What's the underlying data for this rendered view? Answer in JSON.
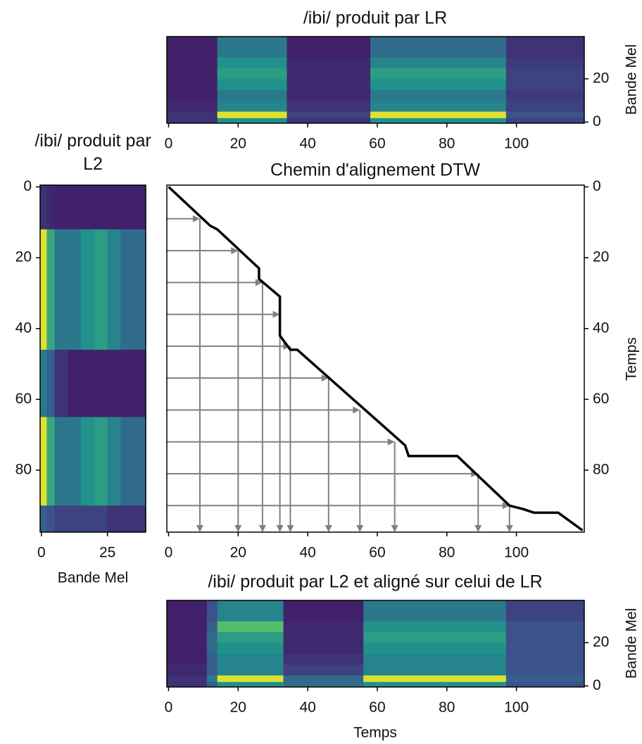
{
  "chart_data": [
    {
      "type": "heatmap",
      "title": "/ibi/ produit par LR",
      "ylabel": "Bande Mel",
      "xlim": [
        -0.5,
        119.5
      ],
      "ylim": [
        -0.5,
        39.5
      ],
      "xticks": [
        0,
        20,
        40,
        60,
        80,
        100
      ],
      "yticks": [
        0,
        20
      ],
      "yaxis_side": "right",
      "colormap": "viridis",
      "x_edges": [
        -0.5,
        14,
        34,
        58,
        97,
        119.5
      ],
      "y_edges": [
        -0.5,
        2,
        5,
        10,
        15,
        20,
        25,
        30,
        39.5
      ],
      "values": [
        [
          0.15,
          0.5,
          0.15,
          0.5,
          0.2
        ],
        [
          0.15,
          0.95,
          0.2,
          0.95,
          0.25
        ],
        [
          0.12,
          0.45,
          0.15,
          0.45,
          0.2
        ],
        [
          0.1,
          0.4,
          0.12,
          0.4,
          0.18
        ],
        [
          0.1,
          0.5,
          0.12,
          0.5,
          0.2
        ],
        [
          0.1,
          0.55,
          0.12,
          0.55,
          0.2
        ],
        [
          0.1,
          0.5,
          0.12,
          0.45,
          0.18
        ],
        [
          0.1,
          0.4,
          0.1,
          0.35,
          0.15
        ]
      ]
    },
    {
      "type": "heatmap",
      "title": "/ibi/ produit par L2",
      "xlabel": "Bande Mel",
      "xlim": [
        -0.5,
        39.5
      ],
      "ylim": [
        97.5,
        -0.5
      ],
      "xticks": [
        0,
        25
      ],
      "yticks": [
        0,
        20,
        40,
        60,
        80
      ],
      "yaxis_side": "left",
      "colormap": "viridis",
      "x_edges": [
        -0.5,
        2,
        5,
        10,
        15,
        20,
        25,
        30,
        39.5
      ],
      "y_edges": [
        -0.5,
        12,
        46,
        65,
        90,
        97.5
      ],
      "values": [
        [
          0.15,
          0.12,
          0.1,
          0.1,
          0.1,
          0.1,
          0.1,
          0.1
        ],
        [
          0.95,
          0.6,
          0.4,
          0.4,
          0.5,
          0.55,
          0.45,
          0.35
        ],
        [
          0.4,
          0.3,
          0.15,
          0.1,
          0.1,
          0.1,
          0.1,
          0.1
        ],
        [
          0.95,
          0.6,
          0.4,
          0.4,
          0.5,
          0.55,
          0.45,
          0.35
        ],
        [
          0.3,
          0.25,
          0.2,
          0.2,
          0.2,
          0.2,
          0.15,
          0.15
        ]
      ]
    },
    {
      "type": "line",
      "title": "Chemin d'alignement DTW",
      "ylabel": "Temps",
      "xlim": [
        -0.5,
        119.5
      ],
      "ylim": [
        97.5,
        -0.5
      ],
      "xticks": [
        0,
        20,
        40,
        60,
        80,
        100
      ],
      "yticks": [
        0,
        20,
        40,
        60,
        80
      ],
      "yaxis_side": "right",
      "color": "#000000",
      "arrow_color": "#808080",
      "path": {
        "x": [
          0,
          12,
          14,
          26,
          26,
          32,
          32,
          35,
          37,
          68,
          69,
          83,
          98,
          102,
          105,
          112,
          119
        ],
        "y": [
          0,
          11,
          12,
          23,
          26,
          31,
          42,
          46,
          46,
          73,
          76,
          76,
          90,
          91,
          92,
          92,
          97
        ]
      },
      "arrows": {
        "x": [
          9,
          20,
          27,
          32,
          35,
          46,
          55,
          65,
          89,
          98
        ],
        "y": [
          9,
          18,
          27,
          36,
          45,
          54,
          63,
          72,
          81,
          90
        ]
      }
    },
    {
      "type": "heatmap",
      "title": "/ibi/ produit par L2 et aligné sur celui de LR",
      "xlabel": "Temps",
      "ylabel": "Bande Mel",
      "xlim": [
        -0.5,
        119.5
      ],
      "ylim": [
        -0.5,
        39.5
      ],
      "xticks": [
        0,
        20,
        40,
        60,
        80,
        100
      ],
      "yticks": [
        0,
        20
      ],
      "yaxis_side": "right",
      "colormap": "viridis",
      "x_edges": [
        -0.5,
        11,
        14,
        33,
        56,
        97,
        119.5
      ],
      "y_edges": [
        -0.5,
        2,
        5,
        10,
        15,
        20,
        25,
        30,
        39.5
      ],
      "values": [
        [
          0.15,
          0.3,
          0.5,
          0.35,
          0.5,
          0.25
        ],
        [
          0.15,
          0.4,
          0.95,
          0.35,
          0.95,
          0.3
        ],
        [
          0.12,
          0.3,
          0.45,
          0.2,
          0.45,
          0.25
        ],
        [
          0.1,
          0.3,
          0.45,
          0.15,
          0.45,
          0.25
        ],
        [
          0.1,
          0.35,
          0.5,
          0.12,
          0.5,
          0.25
        ],
        [
          0.1,
          0.35,
          0.55,
          0.12,
          0.55,
          0.25
        ],
        [
          0.1,
          0.3,
          0.7,
          0.12,
          0.5,
          0.25
        ],
        [
          0.1,
          0.25,
          0.45,
          0.1,
          0.4,
          0.2
        ]
      ]
    }
  ]
}
